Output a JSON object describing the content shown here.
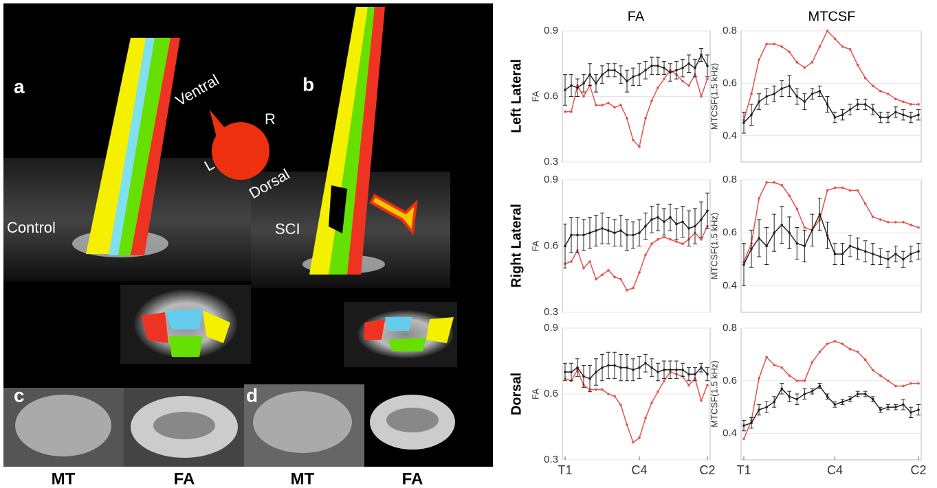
{
  "figure": {
    "panels": {
      "a": "a",
      "b": "b",
      "c": "c",
      "d": "d"
    },
    "orientation": {
      "ventral": "Ventral",
      "right": "R",
      "left": "L",
      "dorsal": "Dorsal"
    },
    "subjects": {
      "control": "Control",
      "sci": "SCI"
    },
    "slice_labels": [
      "MT",
      "FA",
      "MT",
      "FA"
    ],
    "column_titles": [
      "FA",
      "MTCSF"
    ],
    "row_titles": [
      "Left Lateral",
      "Right Lateral",
      "Dorsal"
    ]
  },
  "chart_data": [
    {
      "type": "line",
      "ylabel": "FA",
      "ylim": [
        0.3,
        0.9
      ],
      "yticks": [
        0.3,
        0.6,
        0.9
      ],
      "grid": true,
      "series": [
        {
          "color": "#e8504a",
          "values": [
            0.53,
            0.53,
            0.65,
            0.6,
            0.65,
            0.56,
            0.56,
            0.57,
            0.55,
            0.56,
            0.5,
            0.4,
            0.37,
            0.5,
            0.58,
            0.64,
            0.68,
            0.72,
            0.7,
            0.67,
            0.65,
            0.7,
            0.6,
            0.68
          ]
        },
        {
          "color": "#222222",
          "values": [
            0.63,
            0.65,
            0.64,
            0.66,
            0.7,
            0.66,
            0.7,
            0.72,
            0.72,
            0.7,
            0.67,
            0.69,
            0.7,
            0.72,
            0.74,
            0.74,
            0.73,
            0.71,
            0.72,
            0.73,
            0.75,
            0.73,
            0.79,
            0.74
          ],
          "errors": [
            0.07,
            0.05,
            0.04,
            0.04,
            0.05,
            0.04,
            0.04,
            0.03,
            0.03,
            0.04,
            0.05,
            0.04,
            0.05,
            0.04,
            0.04,
            0.04,
            0.03,
            0.04,
            0.04,
            0.04,
            0.04,
            0.04,
            0.03,
            0.05
          ]
        }
      ]
    },
    {
      "type": "line",
      "ylabel": "MTCSF(1.5 kHz)",
      "ylim": [
        0.3,
        0.8
      ],
      "yticks": [
        0.4,
        0.6,
        0.8
      ],
      "grid": true,
      "series": [
        {
          "color": "#e8504a",
          "values": [
            0.46,
            0.56,
            0.69,
            0.75,
            0.75,
            0.74,
            0.72,
            0.68,
            0.66,
            0.68,
            0.74,
            0.8,
            0.77,
            0.74,
            0.73,
            0.67,
            0.62,
            0.59,
            0.57,
            0.56,
            0.54,
            0.53,
            0.52,
            0.52
          ]
        },
        {
          "color": "#222222",
          "values": [
            0.45,
            0.48,
            0.53,
            0.55,
            0.56,
            0.58,
            0.59,
            0.55,
            0.53,
            0.56,
            0.57,
            0.52,
            0.47,
            0.48,
            0.5,
            0.52,
            0.52,
            0.5,
            0.47,
            0.47,
            0.49,
            0.48,
            0.47,
            0.48
          ],
          "errors": [
            0.04,
            0.04,
            0.03,
            0.03,
            0.03,
            0.03,
            0.04,
            0.03,
            0.03,
            0.02,
            0.02,
            0.03,
            0.02,
            0.02,
            0.02,
            0.02,
            0.02,
            0.02,
            0.02,
            0.02,
            0.02,
            0.02,
            0.02,
            0.02
          ]
        }
      ]
    },
    {
      "type": "line",
      "ylabel": "FA",
      "ylim": [
        0.3,
        0.9
      ],
      "yticks": [
        0.3,
        0.6,
        0.9
      ],
      "grid": true,
      "series": [
        {
          "color": "#e8504a",
          "values": [
            0.52,
            0.53,
            0.58,
            0.5,
            0.53,
            0.45,
            0.47,
            0.49,
            0.46,
            0.45,
            0.4,
            0.41,
            0.48,
            0.56,
            0.61,
            0.63,
            0.64,
            0.63,
            0.62,
            0.61,
            0.63,
            0.66,
            0.63,
            0.69
          ]
        },
        {
          "color": "#222222",
          "values": [
            0.6,
            0.65,
            0.65,
            0.65,
            0.66,
            0.67,
            0.68,
            0.67,
            0.66,
            0.67,
            0.65,
            0.65,
            0.66,
            0.69,
            0.72,
            0.73,
            0.71,
            0.73,
            0.7,
            0.71,
            0.68,
            0.69,
            0.72,
            0.76
          ],
          "errors": [
            0.1,
            0.08,
            0.08,
            0.07,
            0.07,
            0.07,
            0.07,
            0.06,
            0.06,
            0.07,
            0.07,
            0.06,
            0.06,
            0.06,
            0.06,
            0.06,
            0.06,
            0.06,
            0.07,
            0.07,
            0.08,
            0.08,
            0.08,
            0.08
          ]
        }
      ]
    },
    {
      "type": "line",
      "ylabel": "MTCSF(1.5 kHz)",
      "ylim": [
        0.3,
        0.8
      ],
      "yticks": [
        0.4,
        0.6,
        0.8
      ],
      "grid": true,
      "series": [
        {
          "color": "#e8504a",
          "values": [
            0.49,
            0.56,
            0.73,
            0.79,
            0.79,
            0.78,
            0.74,
            0.69,
            0.62,
            0.61,
            0.65,
            0.76,
            0.77,
            0.77,
            0.76,
            0.76,
            0.71,
            0.66,
            0.65,
            0.64,
            0.64,
            0.64,
            0.63,
            0.62
          ]
        },
        {
          "color": "#222222",
          "values": [
            0.48,
            0.54,
            0.58,
            0.55,
            0.6,
            0.63,
            0.6,
            0.56,
            0.55,
            0.61,
            0.67,
            0.59,
            0.52,
            0.52,
            0.55,
            0.54,
            0.53,
            0.52,
            0.51,
            0.5,
            0.52,
            0.5,
            0.52,
            0.53
          ],
          "errors": [
            0.08,
            0.07,
            0.07,
            0.07,
            0.07,
            0.07,
            0.06,
            0.06,
            0.06,
            0.06,
            0.06,
            0.05,
            0.04,
            0.04,
            0.04,
            0.04,
            0.04,
            0.04,
            0.03,
            0.03,
            0.03,
            0.03,
            0.03,
            0.03
          ]
        }
      ]
    },
    {
      "type": "line",
      "ylabel": "FA",
      "ylim": [
        0.3,
        0.9
      ],
      "yticks": [
        0.3,
        0.6,
        0.9
      ],
      "grid": true,
      "categories": [
        "T1",
        null,
        null,
        null,
        null,
        null,
        null,
        null,
        null,
        null,
        null,
        null,
        "C4",
        null,
        null,
        null,
        null,
        null,
        null,
        null,
        null,
        null,
        null,
        "C2"
      ],
      "series": [
        {
          "color": "#e8504a",
          "values": [
            0.67,
            0.66,
            0.71,
            0.64,
            0.62,
            0.62,
            0.62,
            0.6,
            0.59,
            0.55,
            0.46,
            0.38,
            0.4,
            0.49,
            0.56,
            0.61,
            0.66,
            0.7,
            0.69,
            0.68,
            0.64,
            0.67,
            0.57,
            0.64
          ]
        },
        {
          "color": "#222222",
          "values": [
            0.7,
            0.7,
            0.72,
            0.68,
            0.67,
            0.7,
            0.72,
            0.73,
            0.73,
            0.72,
            0.72,
            0.71,
            0.72,
            0.74,
            0.72,
            0.7,
            0.71,
            0.71,
            0.71,
            0.71,
            0.69,
            0.69,
            0.72,
            0.69
          ],
          "errors": [
            0.04,
            0.04,
            0.04,
            0.05,
            0.06,
            0.06,
            0.06,
            0.06,
            0.06,
            0.06,
            0.06,
            0.05,
            0.05,
            0.04,
            0.04,
            0.04,
            0.04,
            0.04,
            0.04,
            0.03,
            0.03,
            0.03,
            0.02,
            0.03
          ]
        }
      ]
    },
    {
      "type": "line",
      "ylabel": "MTCSF(1.5 kHz)",
      "ylim": [
        0.3,
        0.8
      ],
      "yticks": [
        0.4,
        0.6,
        0.8
      ],
      "grid": true,
      "categories": [
        "T1",
        null,
        null,
        null,
        null,
        null,
        null,
        null,
        null,
        null,
        null,
        null,
        "C4",
        null,
        null,
        null,
        null,
        null,
        null,
        null,
        null,
        null,
        null,
        "C2"
      ],
      "series": [
        {
          "color": "#e8504a",
          "values": [
            0.38,
            0.45,
            0.61,
            0.69,
            0.66,
            0.65,
            0.62,
            0.6,
            0.6,
            0.67,
            0.71,
            0.74,
            0.75,
            0.74,
            0.72,
            0.71,
            0.68,
            0.64,
            0.62,
            0.6,
            0.58,
            0.58,
            0.59,
            0.59
          ]
        },
        {
          "color": "#222222",
          "values": [
            0.43,
            0.44,
            0.49,
            0.5,
            0.52,
            0.57,
            0.54,
            0.53,
            0.55,
            0.56,
            0.58,
            0.54,
            0.51,
            0.52,
            0.53,
            0.55,
            0.55,
            0.53,
            0.49,
            0.5,
            0.5,
            0.51,
            0.48,
            0.49
          ],
          "errors": [
            0.02,
            0.02,
            0.02,
            0.02,
            0.02,
            0.02,
            0.02,
            0.02,
            0.02,
            0.01,
            0.01,
            0.01,
            0.01,
            0.01,
            0.01,
            0.01,
            0.01,
            0.01,
            0.01,
            0.01,
            0.01,
            0.02,
            0.02,
            0.02
          ]
        }
      ]
    }
  ]
}
